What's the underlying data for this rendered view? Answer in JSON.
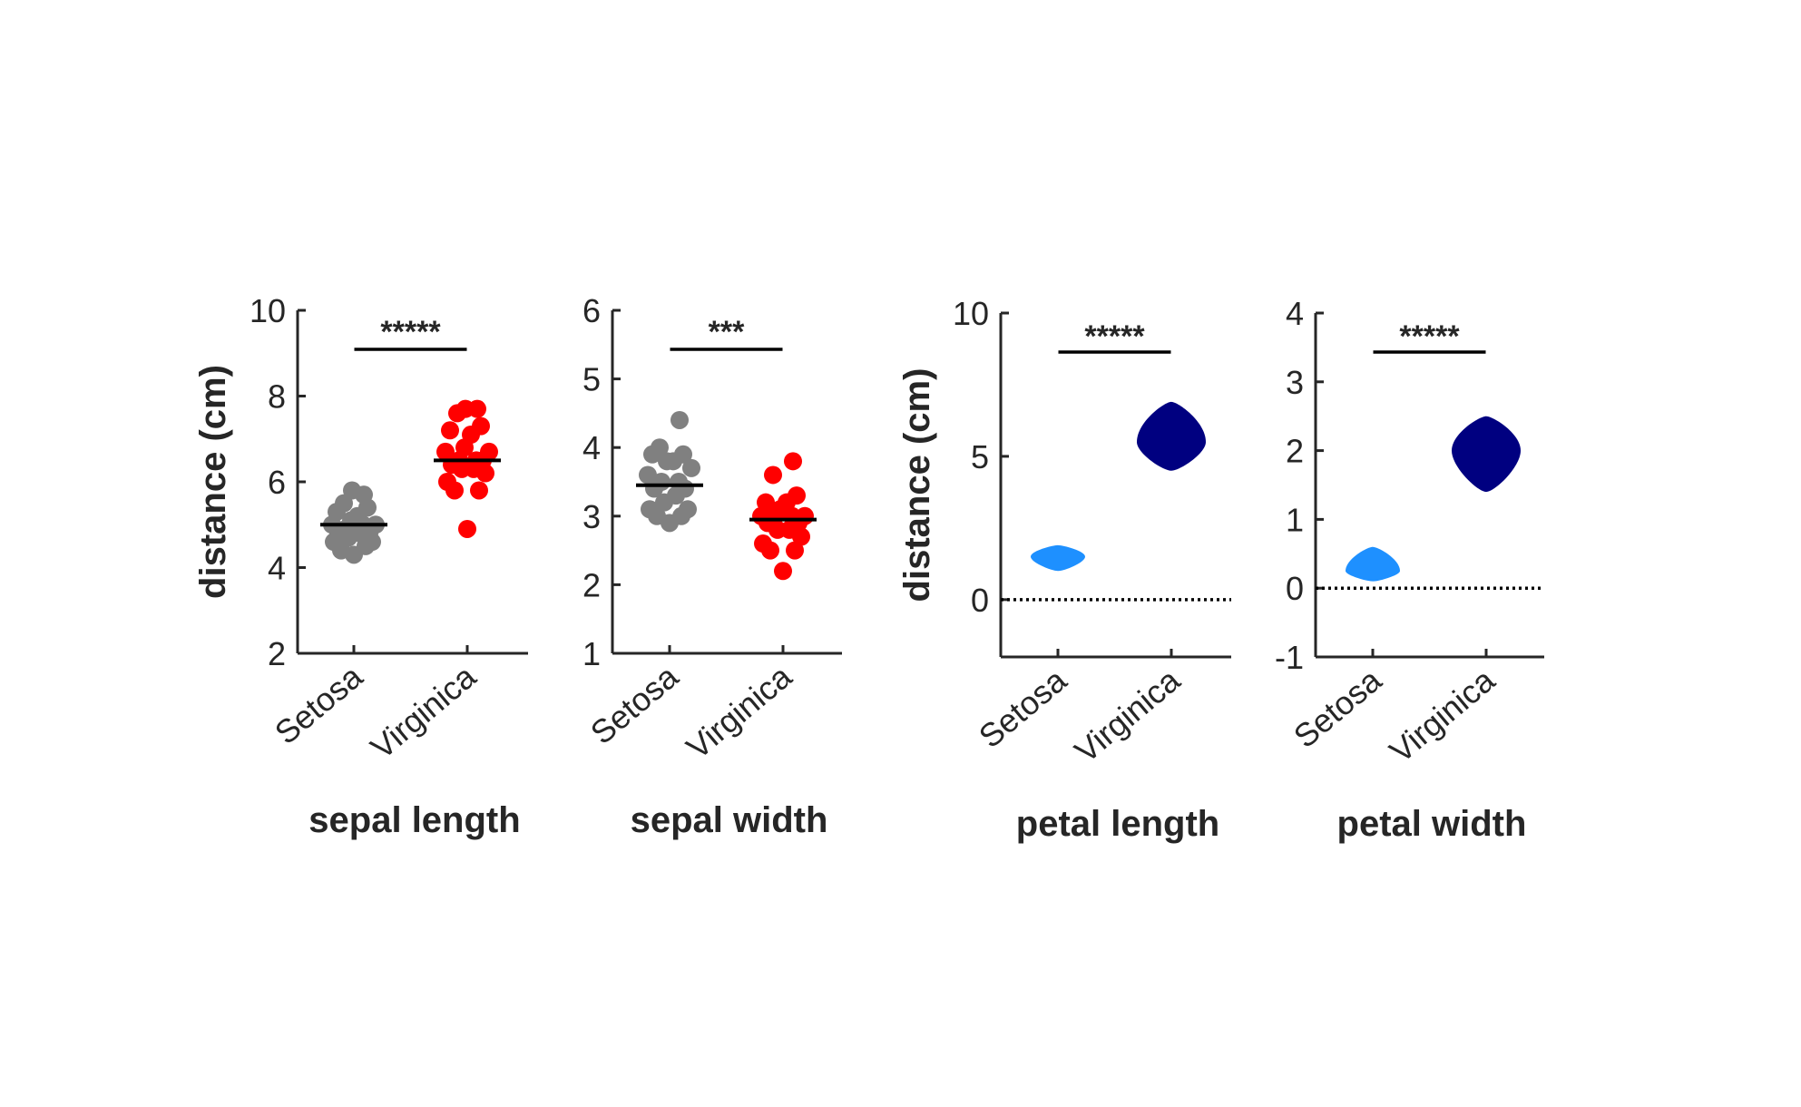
{
  "colors": {
    "setosa_points": "#808080",
    "virginica_points": "#ff0000",
    "setosa_violin": "#1e90ff",
    "virginica_violin": "#000080",
    "axis": "#262626"
  },
  "chart_data": [
    {
      "type": "scatter",
      "title": "sepal length",
      "ylabel": "distance (cm)",
      "ylim": [
        2,
        10
      ],
      "yticks": [
        "2",
        "4",
        "6",
        "8",
        "10"
      ],
      "categories": [
        "Setosa",
        "Virginica"
      ],
      "significance": "*****",
      "series": [
        {
          "name": "Setosa",
          "mean": 5.0,
          "values": [
            4.3,
            4.4,
            4.5,
            4.6,
            4.6,
            4.7,
            4.8,
            4.8,
            4.8,
            4.9,
            5.0,
            5.0,
            5.0,
            5.1,
            5.2,
            5.3,
            5.4,
            5.5,
            5.7,
            5.8
          ]
        },
        {
          "name": "Virginica",
          "mean": 6.5,
          "values": [
            4.9,
            5.8,
            5.8,
            6.0,
            6.2,
            6.3,
            6.3,
            6.4,
            6.5,
            6.5,
            6.5,
            6.7,
            6.7,
            6.8,
            7.1,
            7.2,
            7.3,
            7.6,
            7.7,
            7.7
          ]
        }
      ]
    },
    {
      "type": "scatter",
      "title": "sepal width",
      "ylim": [
        1,
        6
      ],
      "yticks": [
        "1",
        "2",
        "3",
        "4",
        "5",
        "6"
      ],
      "categories": [
        "Setosa",
        "Virginica"
      ],
      "significance": "***",
      "series": [
        {
          "name": "Setosa",
          "mean": 3.45,
          "values": [
            2.9,
            3.0,
            3.0,
            3.1,
            3.1,
            3.2,
            3.3,
            3.4,
            3.4,
            3.5,
            3.5,
            3.6,
            3.7,
            3.8,
            3.8,
            3.9,
            3.9,
            4.0,
            4.4
          ]
        },
        {
          "name": "Virginica",
          "mean": 2.95,
          "values": [
            2.2,
            2.5,
            2.5,
            2.6,
            2.7,
            2.8,
            2.8,
            2.9,
            2.9,
            3.0,
            3.0,
            3.0,
            3.0,
            3.1,
            3.2,
            3.2,
            3.3,
            3.6,
            3.8
          ]
        }
      ]
    },
    {
      "type": "violin",
      "title": "petal length",
      "ylabel": "distance (cm)",
      "ylim": [
        -2,
        10
      ],
      "yticks": [
        "0",
        "5",
        "10"
      ],
      "categories": [
        "Setosa",
        "Virginica"
      ],
      "significance": "*****",
      "reference_line": 0,
      "series": [
        {
          "name": "Setosa",
          "min": 1.0,
          "max": 1.9,
          "peak": 1.5
        },
        {
          "name": "Virginica",
          "min": 4.5,
          "max": 6.9,
          "peak": 5.5
        }
      ]
    },
    {
      "type": "violin",
      "title": "petal width",
      "ylim": [
        -1,
        4
      ],
      "yticks": [
        "-1",
        "0",
        "1",
        "2",
        "3",
        "4"
      ],
      "categories": [
        "Setosa",
        "Virginica"
      ],
      "significance": "*****",
      "reference_line": 0,
      "series": [
        {
          "name": "Setosa",
          "min": 0.1,
          "max": 0.6,
          "peak": 0.25
        },
        {
          "name": "Virginica",
          "min": 1.4,
          "max": 2.5,
          "peak": 2.0
        }
      ]
    }
  ]
}
